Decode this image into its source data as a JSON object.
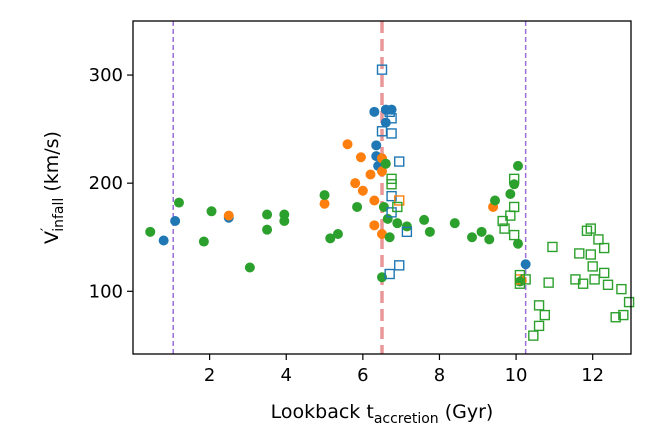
{
  "chart_data": {
    "type": "scatter",
    "xlabel": {
      "main": "Lookback t",
      "sub": "accretion",
      "suffix": " (Gyr)"
    },
    "ylabel": {
      "main": "V",
      "prime": "′",
      "sub": "infall",
      "suffix": " (km/s)"
    },
    "xlim": [
      0,
      13
    ],
    "ylim": [
      42,
      350
    ],
    "xticks": [
      2,
      4,
      6,
      8,
      10,
      12
    ],
    "yticks": [
      100,
      200,
      300
    ],
    "vlines": [
      {
        "x": 1.05,
        "style": "dashed",
        "color": "#9b6fd6"
      },
      {
        "x": 6.5,
        "style": "dashed-thick",
        "color": "#e89696"
      },
      {
        "x": 10.25,
        "style": "dashed",
        "color": "#9b6fd6"
      }
    ],
    "colors": {
      "blue": "#1f77b4",
      "orange": "#ff7f0e",
      "green": "#2ca02c"
    },
    "series": [
      {
        "name": "blue-filled",
        "marker": "circle",
        "filled": true,
        "color": "#1f77b4",
        "points": [
          [
            0.8,
            147
          ],
          [
            1.1,
            165
          ],
          [
            2.5,
            168
          ],
          [
            6.3,
            266
          ],
          [
            6.35,
            235
          ],
          [
            6.35,
            225
          ],
          [
            6.4,
            216
          ],
          [
            6.6,
            268
          ],
          [
            6.6,
            256
          ],
          [
            6.75,
            268
          ],
          [
            10.25,
            125
          ]
        ]
      },
      {
        "name": "orange-filled",
        "marker": "circle",
        "filled": true,
        "color": "#ff7f0e",
        "points": [
          [
            2.5,
            170
          ],
          [
            5.0,
            181
          ],
          [
            5.6,
            236
          ],
          [
            5.8,
            200
          ],
          [
            5.95,
            224
          ],
          [
            6.0,
            193
          ],
          [
            6.2,
            208
          ],
          [
            6.3,
            184
          ],
          [
            6.3,
            161
          ],
          [
            6.5,
            223
          ],
          [
            6.5,
            211
          ],
          [
            6.5,
            153
          ],
          [
            9.4,
            178
          ],
          [
            10.15,
            110
          ]
        ]
      },
      {
        "name": "green-filled",
        "marker": "circle",
        "filled": true,
        "color": "#2ca02c",
        "points": [
          [
            0.45,
            155
          ],
          [
            1.2,
            182
          ],
          [
            1.85,
            146
          ],
          [
            2.05,
            174
          ],
          [
            3.05,
            122
          ],
          [
            3.5,
            171
          ],
          [
            3.5,
            157
          ],
          [
            3.95,
            171
          ],
          [
            3.95,
            165
          ],
          [
            5.0,
            189
          ],
          [
            5.15,
            149
          ],
          [
            5.35,
            153
          ],
          [
            5.85,
            178
          ],
          [
            6.5,
            113
          ],
          [
            6.55,
            178
          ],
          [
            6.6,
            218
          ],
          [
            6.65,
            167
          ],
          [
            6.7,
            150
          ],
          [
            6.9,
            163
          ],
          [
            7.15,
            160
          ],
          [
            7.6,
            166
          ],
          [
            7.75,
            155
          ],
          [
            8.4,
            163
          ],
          [
            8.85,
            150
          ],
          [
            9.1,
            155
          ],
          [
            9.3,
            148
          ],
          [
            9.45,
            184
          ],
          [
            9.85,
            190
          ],
          [
            9.95,
            199
          ],
          [
            10.05,
            216
          ],
          [
            10.05,
            144
          ],
          [
            10.1,
            109
          ]
        ]
      },
      {
        "name": "blue-open",
        "marker": "square",
        "filled": false,
        "color": "#1f77b4",
        "points": [
          [
            6.5,
            305
          ],
          [
            6.5,
            248
          ],
          [
            6.7,
            266
          ],
          [
            6.75,
            260
          ],
          [
            6.75,
            246
          ],
          [
            6.75,
            188
          ],
          [
            6.75,
            173
          ],
          [
            6.7,
            116
          ],
          [
            6.95,
            220
          ],
          [
            6.95,
            124
          ],
          [
            7.15,
            155
          ]
        ]
      },
      {
        "name": "orange-open",
        "marker": "square",
        "filled": false,
        "color": "#ff7f0e",
        "points": [
          [
            6.95,
            184
          ],
          [
            10.1,
            111
          ]
        ]
      },
      {
        "name": "green-open",
        "marker": "square",
        "filled": false,
        "color": "#2ca02c",
        "points": [
          [
            6.75,
            204
          ],
          [
            6.75,
            199
          ],
          [
            6.9,
            178
          ],
          [
            9.65,
            165
          ],
          [
            9.7,
            158
          ],
          [
            9.85,
            170
          ],
          [
            9.95,
            204
          ],
          [
            9.95,
            178
          ],
          [
            9.95,
            152
          ],
          [
            10.1,
            107
          ],
          [
            10.1,
            115
          ],
          [
            10.25,
            111
          ],
          [
            10.45,
            59
          ],
          [
            10.6,
            68
          ],
          [
            10.6,
            87
          ],
          [
            10.75,
            78
          ],
          [
            10.85,
            108
          ],
          [
            10.95,
            141
          ],
          [
            11.55,
            111
          ],
          [
            11.65,
            135
          ],
          [
            11.75,
            107
          ],
          [
            11.85,
            156
          ],
          [
            11.95,
            158
          ],
          [
            11.95,
            134
          ],
          [
            12.0,
            123
          ],
          [
            12.05,
            111
          ],
          [
            12.15,
            148
          ],
          [
            12.3,
            140
          ],
          [
            12.3,
            117
          ],
          [
            12.4,
            106
          ],
          [
            12.6,
            76
          ],
          [
            12.75,
            102
          ],
          [
            12.8,
            78
          ],
          [
            12.95,
            90
          ]
        ]
      }
    ]
  }
}
